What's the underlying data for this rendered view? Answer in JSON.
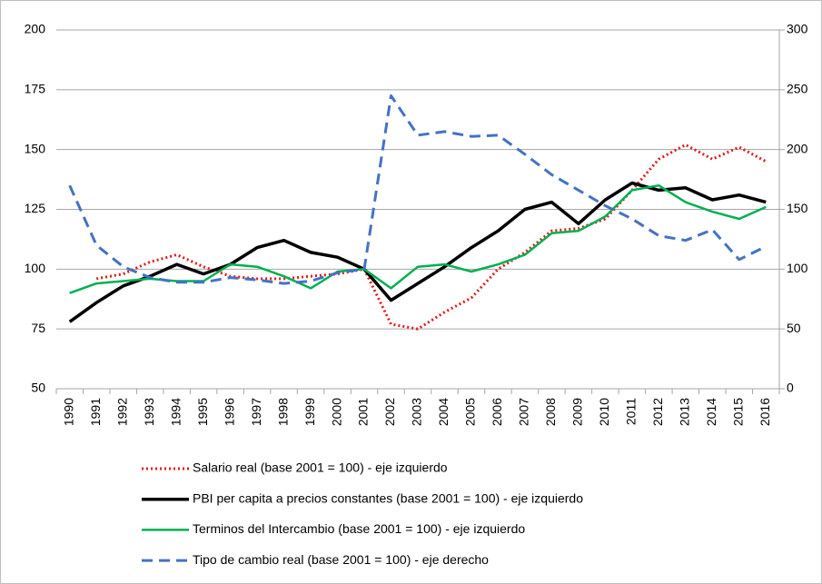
{
  "chart_data": {
    "type": "line",
    "categories": [
      "1990",
      "1991",
      "1992",
      "1993",
      "1994",
      "1995",
      "1996",
      "1997",
      "1998",
      "1999",
      "2000",
      "2001",
      "2002",
      "2003",
      "2004",
      "2005",
      "2006",
      "2007",
      "2008",
      "2009",
      "2010",
      "2011",
      "2012",
      "2013",
      "2014",
      "2015",
      "2016"
    ],
    "series": [
      {
        "name": "Salario real (base 2001 = 100) - eje izquierdo",
        "color": "#e31a1c",
        "dash": "dotted",
        "width": 3,
        "values": [
          null,
          96,
          98,
          103,
          106,
          101,
          97,
          96,
          96,
          97,
          98,
          100,
          77,
          75,
          82,
          88,
          100,
          107,
          116,
          117,
          121,
          133,
          146,
          152,
          146,
          151,
          145
        ]
      },
      {
        "name": "PBI per capita a precios constantes (base 2001 = 100) - eje izquierdo",
        "color": "#000000",
        "dash": "solid",
        "width": 3.5,
        "values": [
          78,
          86,
          93,
          97,
          102,
          98,
          102,
          109,
          112,
          107,
          105,
          100,
          87,
          94,
          101,
          109,
          116,
          125,
          128,
          119,
          129,
          136,
          133,
          134,
          129,
          131,
          128
        ]
      },
      {
        "name": "Terminos del Intercambio (base 2001 = 100) - eje izquierdo",
        "color": "#00b050",
        "dash": "solid",
        "width": 2.5,
        "values": [
          90,
          94,
          95,
          96,
          95,
          95,
          102,
          101,
          97,
          92,
          99,
          100,
          92,
          101,
          102,
          99,
          102,
          106,
          115,
          116,
          122,
          133,
          135,
          128,
          124,
          121,
          126
        ]
      },
      {
        "name": "Tipo de cambio real (base 2001 = 100) - eje derecho",
        "color": "#4472c4",
        "dash": "dashed",
        "width": 3,
        "axis": "y2",
        "values": [
          170,
          120,
          102,
          93,
          89,
          89,
          93,
          91,
          88,
          90,
          97,
          100,
          245,
          212,
          215,
          211,
          212,
          196,
          179,
          166,
          153,
          142,
          128,
          124,
          133,
          108,
          119
        ]
      }
    ],
    "ylim": [
      50,
      200
    ],
    "yticks": [
      50,
      75,
      100,
      125,
      150,
      175,
      200
    ],
    "y2lim": [
      0,
      300
    ],
    "y2ticks": [
      0,
      50,
      100,
      150,
      200,
      250,
      300
    ],
    "grid": true
  }
}
